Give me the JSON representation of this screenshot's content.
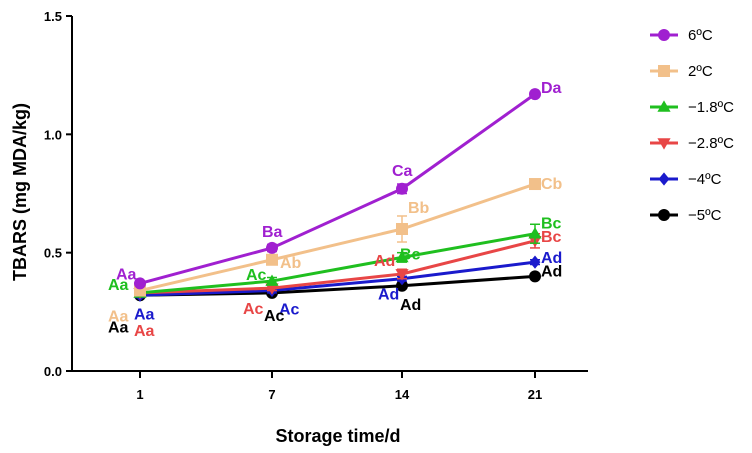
{
  "chart_data": {
    "type": "line",
    "xlabel": "Storage time/d",
    "ylabel": "TBARS (mg MDA/kg)",
    "categories": [
      "1",
      "7",
      "14",
      "21"
    ],
    "ylim": [
      0,
      1.5
    ],
    "yticks": [
      "0.0",
      "0.5",
      "1.0",
      "1.5"
    ],
    "legend_position": "right",
    "grid": false,
    "series": [
      {
        "name": "6ºC",
        "color": "#a020d0",
        "marker": "circle",
        "values": [
          0.37,
          0.52,
          0.77,
          1.17
        ],
        "errors": [
          0.01,
          0.015,
          0.02,
          0.01
        ],
        "labels": [
          "Aa",
          "Ba",
          "Ca",
          "Da"
        ]
      },
      {
        "name": "2ºC",
        "color": "#f2c08a",
        "marker": "square",
        "values": [
          0.34,
          0.47,
          0.6,
          0.79
        ],
        "errors": [
          0.01,
          0.02,
          0.055,
          0.01
        ],
        "labels": [
          "Aa",
          "Ab",
          "Bb",
          "Cb"
        ]
      },
      {
        "name": "−1.8ºC",
        "color": "#1fbf1f",
        "marker": "triangle-up",
        "values": [
          0.33,
          0.38,
          0.48,
          0.58
        ],
        "errors": [
          0.01,
          0.015,
          0.02,
          0.04
        ],
        "labels": [
          "Aa",
          "Ac",
          "Bc",
          "Bc"
        ]
      },
      {
        "name": "−2.8ºC",
        "color": "#e84646",
        "marker": "triangle-down",
        "values": [
          0.33,
          0.35,
          0.41,
          0.55
        ],
        "errors": [
          0.01,
          0.01,
          0.02,
          0.03
        ],
        "labels": [
          "Aa",
          "Ac",
          "Ad",
          "Bc"
        ]
      },
      {
        "name": "−4ºC",
        "color": "#1a1acc",
        "marker": "diamond",
        "values": [
          0.32,
          0.34,
          0.39,
          0.46
        ],
        "errors": [
          0.01,
          0.01,
          0.01,
          0.01
        ],
        "labels": [
          "Aa",
          "Ac",
          "Ad",
          "Ad"
        ]
      },
      {
        "name": "−5ºC",
        "color": "#000000",
        "marker": "circle",
        "values": [
          0.32,
          0.33,
          0.36,
          0.4
        ],
        "errors": [
          0.01,
          0.01,
          0.01,
          0.01
        ],
        "labels": [
          "Aa",
          "Ac",
          "Ad",
          "Ad"
        ]
      }
    ]
  }
}
